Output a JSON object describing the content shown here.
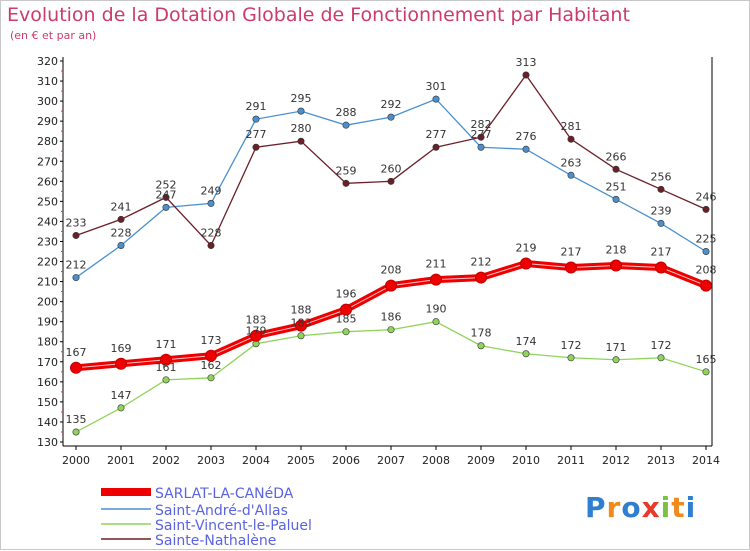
{
  "chart_data": {
    "type": "line",
    "title": "Evolution de la Dotation Globale de Fonctionnement par Habitant",
    "subtitle": "(en € et par an)",
    "x": [
      "2000",
      "2001",
      "2002",
      "2003",
      "2004",
      "2005",
      "2006",
      "2007",
      "2008",
      "2009",
      "2010",
      "2011",
      "2012",
      "2013",
      "2014"
    ],
    "ylim": [
      130,
      320
    ],
    "yticks": [
      130,
      140,
      150,
      160,
      170,
      180,
      190,
      200,
      210,
      220,
      230,
      240,
      250,
      260,
      270,
      280,
      290,
      300,
      310,
      320
    ],
    "grid": false,
    "series": [
      {
        "name": "SARLAT-LA-CANéDA",
        "color": "#ee0000",
        "values": [
          167,
          169,
          171,
          173,
          183,
          188,
          196,
          208,
          211,
          212,
          219,
          217,
          218,
          217,
          208
        ]
      },
      {
        "name": "Saint-André-d'Allas",
        "color": "#4a8fd0",
        "values": [
          212,
          228,
          247,
          249,
          291,
          295,
          288,
          292,
          301,
          277,
          276,
          263,
          251,
          239,
          225
        ]
      },
      {
        "name": "Saint-Vincent-le-Paluel",
        "color": "#8ed45a",
        "values": [
          135,
          147,
          161,
          162,
          179,
          183,
          185,
          186,
          190,
          178,
          174,
          172,
          171,
          172,
          165
        ]
      },
      {
        "name": "Sainte-Nathalène",
        "color": "#6b1f27",
        "values": [
          233,
          241,
          252,
          228,
          277,
          280,
          259,
          260,
          277,
          282,
          313,
          281,
          266,
          256,
          246
        ]
      }
    ]
  },
  "logo": {
    "text": "Proxiti",
    "letters": [
      "P",
      "r",
      "o",
      "x",
      "i",
      "t",
      "i"
    ],
    "colors": [
      "#2f7fd0",
      "#f08a1c",
      "#2f7fd0",
      "#e73a2a",
      "#7cc242",
      "#f08a1c",
      "#2f7fd0"
    ]
  }
}
